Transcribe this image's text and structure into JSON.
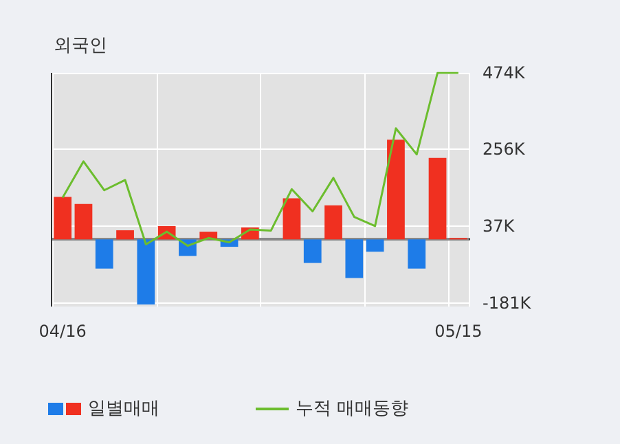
{
  "chart_data": {
    "type": "bar",
    "title": "외국인",
    "categories": [
      "04/16",
      null,
      null,
      null,
      null,
      null,
      null,
      null,
      null,
      null,
      null,
      null,
      null,
      null,
      null,
      null,
      null,
      null,
      null,
      "05/15"
    ],
    "series": [
      {
        "name": "일별매매",
        "colors": [
          "#f03020",
          "#f03020",
          "#1e7ce8",
          "#f03020",
          "#1e7ce8",
          "#f03020",
          "#1e7ce8",
          "#f03020",
          "#1e7ce8",
          "#f03020",
          "#f03020",
          "#f03020",
          "#1e7ce8",
          "#f03020",
          "#1e7ce8",
          "#1e7ce8",
          "#f03020",
          "#1e7ce8",
          "#f03020",
          "#f03020"
        ],
        "values": [
          121,
          101,
          -83,
          26,
          -185,
          38,
          -47,
          22,
          -21,
          34,
          0,
          117,
          -67,
          97,
          -110,
          -35,
          284,
          -83,
          232,
          4
        ]
      },
      {
        "name": "누적 매매동향",
        "type": "line",
        "color": "#6cbd2e",
        "values": [
          119,
          222,
          140,
          169,
          -14,
          22,
          -18,
          4,
          -8,
          28,
          25,
          143,
          80,
          175,
          64,
          38,
          316,
          242,
          474,
          474
        ]
      }
    ],
    "ylim": [
      -191,
      474
    ],
    "yticks": [
      {
        "value": -181,
        "label": "-181K"
      },
      {
        "value": 37,
        "label": "37K"
      },
      {
        "value": 256,
        "label": "256K"
      },
      {
        "value": 474,
        "label": "474K"
      }
    ],
    "grid": true,
    "legend": "bottom",
    "marker": "none"
  }
}
